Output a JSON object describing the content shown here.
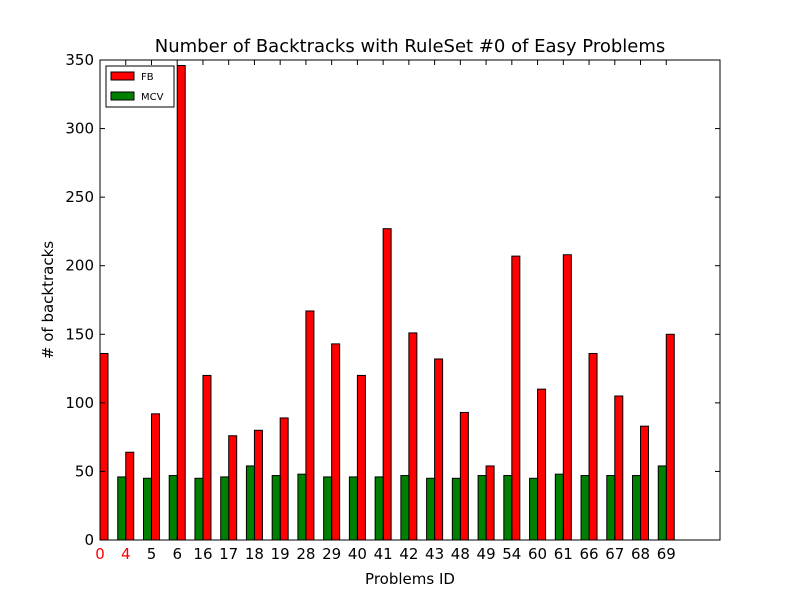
{
  "chart_data": {
    "type": "bar",
    "title": "Number of Backtracks with RuleSet #0 of Easy Problems",
    "xlabel": "Problems ID",
    "ylabel": "# of backtracks",
    "ylim": [
      0,
      350
    ],
    "yticks": [
      0,
      50,
      100,
      150,
      200,
      250,
      300,
      350
    ],
    "grid": false,
    "legend_position": "top-left",
    "categories": [
      "0",
      "4",
      "5",
      "6",
      "16",
      "17",
      "18",
      "19",
      "28",
      "29",
      "40",
      "41",
      "42",
      "43",
      "48",
      "49",
      "54",
      "60",
      "61",
      "66",
      "67",
      "68",
      "69"
    ],
    "highlighted_categories": [
      "0",
      "4"
    ],
    "highlight_color": "#ff0000",
    "series": [
      {
        "name": "FB",
        "color": "#ff0000",
        "values": [
          136,
          64,
          92,
          346,
          120,
          76,
          80,
          89,
          167,
          143,
          120,
          227,
          151,
          132,
          93,
          54,
          207,
          110,
          208,
          136,
          105,
          83,
          150
        ]
      },
      {
        "name": "MCV",
        "color": "#008000",
        "values": [
          0,
          46,
          45,
          47,
          45,
          46,
          54,
          47,
          48,
          46,
          46,
          46,
          47,
          45,
          45,
          47,
          47,
          45,
          48,
          47,
          47,
          47,
          54
        ]
      }
    ]
  }
}
